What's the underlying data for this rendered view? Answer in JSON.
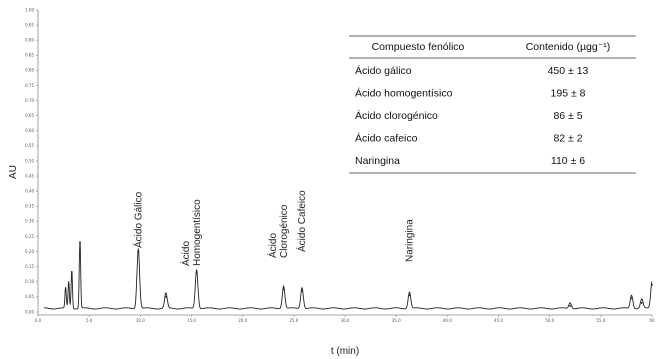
{
  "chart_data": {
    "type": "line",
    "xlabel": "t (min)",
    "ylabel": "AU",
    "xlim": [
      0,
      60
    ],
    "ylim": [
      -0.01,
      1.0
    ],
    "x_ticks": [
      "0.0",
      "5.0",
      "10.0",
      "15.0",
      "20.0",
      "25.0",
      "30.0",
      "35.0",
      "40.0",
      "45.0",
      "50.0",
      "55.0",
      "60"
    ],
    "y_ticks": [
      "0.00",
      "0.05",
      "0.10",
      "0.15",
      "0.20",
      "0.25",
      "0.30",
      "0.35",
      "0.40",
      "0.45",
      "0.50",
      "0.55",
      "0.60",
      "0.65",
      "0.70",
      "0.75",
      "0.80",
      "0.85",
      "0.90",
      "0.95",
      "1.00"
    ],
    "peak_labels": [
      {
        "text": "Ácido Gálico",
        "x": 9.8
      },
      {
        "text": "Ácido\nHomogentísico",
        "x": 15.5
      },
      {
        "text": "Ácido\nClorogénico",
        "x": 24.0
      },
      {
        "text": "Ácido Cafeico",
        "x": 25.8
      },
      {
        "text": "Naringina",
        "x": 36.3
      }
    ],
    "peaks": [
      {
        "x": 2.7,
        "y": 0.07
      },
      {
        "x": 3.0,
        "y": 0.09
      },
      {
        "x": 3.3,
        "y": 0.13
      },
      {
        "x": 4.1,
        "y": 0.23
      },
      {
        "x": 9.8,
        "y": 0.2
      },
      {
        "x": 12.5,
        "y": 0.05
      },
      {
        "x": 15.5,
        "y": 0.13
      },
      {
        "x": 24.0,
        "y": 0.075
      },
      {
        "x": 25.8,
        "y": 0.07
      },
      {
        "x": 36.3,
        "y": 0.055
      },
      {
        "x": 52.0,
        "y": 0.02
      },
      {
        "x": 58.0,
        "y": 0.045
      },
      {
        "x": 59.0,
        "y": 0.03
      },
      {
        "x": 60.0,
        "y": 0.09
      }
    ],
    "table": {
      "headers": [
        "Compuesto fenólico",
        "Contenido (µgg⁻¹)"
      ],
      "rows": [
        [
          "Ácido gálico",
          "450 ± 13"
        ],
        [
          "Ácido homogentísico",
          "195 ± 8"
        ],
        [
          "Ácido clorogénico",
          "86 ± 5"
        ],
        [
          "Ácido cafeico",
          "82 ± 2"
        ],
        [
          "Naringina",
          "110 ± 6"
        ]
      ]
    }
  }
}
